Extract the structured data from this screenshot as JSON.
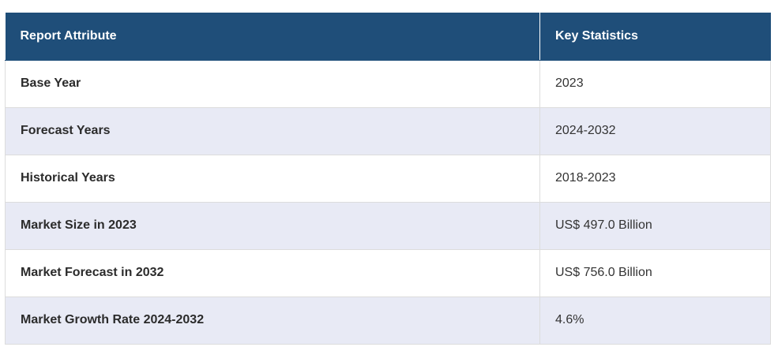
{
  "table": {
    "headers": [
      "Report Attribute",
      "Key Statistics"
    ],
    "rows": [
      [
        "Base Year",
        "2023"
      ],
      [
        "Forecast Years",
        "2024-2032"
      ],
      [
        "Historical Years",
        "2018-2023"
      ],
      [
        "Market Size in 2023",
        "US$ 497.0 Billion"
      ],
      [
        "Market Forecast in 2032",
        "US$ 756.0 Billion"
      ],
      [
        "Market Growth Rate 2024-2032",
        "4.6%"
      ]
    ],
    "colors": {
      "header_bg": "#1f4e79",
      "header_text": "#ffffff",
      "stripe_bg": "#e8eaf5",
      "row_bg": "#ffffff"
    }
  }
}
